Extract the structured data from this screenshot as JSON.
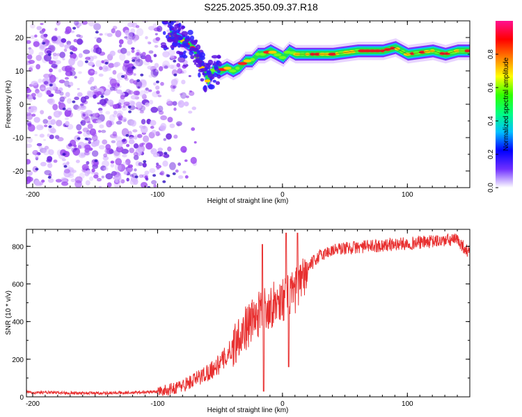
{
  "figure": {
    "title": "S225.2025.350.09.37.R18"
  },
  "colors": {
    "snr_line": "#e83030",
    "spec_noise": "#9b45f0",
    "axis": "#000000",
    "colorbar_stops": [
      "#ffffff",
      "#7030ff",
      "#0000ff",
      "#00c0ff",
      "#00ff80",
      "#30ff00",
      "#ffff00",
      "#ff8000",
      "#ff0000",
      "#ff1090"
    ]
  },
  "chart_data": [
    {
      "type": "heatmap",
      "title": "",
      "xlabel": "Height of straight line (km)",
      "ylabel": "Frequency (Hz)",
      "xlim": [
        -205,
        150
      ],
      "ylim": [
        -25,
        25
      ],
      "xticks": [
        -200,
        -100,
        0,
        100
      ],
      "xtick_labels": [
        "-200",
        "-100",
        "0",
        "100"
      ],
      "yticks": [
        -20,
        -10,
        0,
        10,
        20
      ],
      "ytick_labels": [
        "-20",
        "-10",
        "0",
        "10",
        "20"
      ],
      "colorbar": {
        "label": "Normalized spectral amplitude",
        "range": [
          0,
          1
        ],
        "ticks": [
          0.0,
          0.2,
          0.4,
          0.6,
          0.8
        ],
        "tick_labels": [
          "0.0",
          "0.2",
          "0.4",
          "0.6",
          "0.8"
        ]
      },
      "ridge": {
        "x": [
          -90,
          -80,
          -72,
          -65,
          -60,
          -55,
          -50,
          -45,
          -40,
          -35,
          -30,
          -25,
          -20,
          -15,
          -10,
          -5,
          0,
          5,
          10,
          20,
          40,
          60,
          80,
          90,
          100,
          120,
          130,
          140,
          150
        ],
        "frequency": [
          21,
          19,
          17,
          12,
          7,
          11,
          10,
          11,
          10,
          11,
          13,
          13,
          15,
          15,
          16,
          15,
          14,
          16,
          15,
          15,
          15,
          16,
          16,
          17,
          15,
          16,
          15,
          16,
          16
        ]
      },
      "noise_region_x": [
        -205,
        -80
      ]
    },
    {
      "type": "line",
      "title": "",
      "xlabel": "Height of straight line (km)",
      "ylabel": "SNR (10 * v/v)",
      "xlim": [
        -205,
        150
      ],
      "ylim": [
        0,
        890
      ],
      "xticks": [
        -200,
        -100,
        0,
        100
      ],
      "xtick_labels": [
        "-200",
        "-100",
        "0",
        "100"
      ],
      "yticks": [
        0,
        200,
        400,
        600,
        800
      ],
      "ytick_labels": [
        "0",
        "200",
        "400",
        "600",
        "800"
      ],
      "series": [
        {
          "name": "SNR",
          "x": [
            -205,
            -180,
            -150,
            -120,
            -100,
            -90,
            -80,
            -70,
            -60,
            -50,
            -40,
            -35,
            -30,
            -25,
            -20,
            -15,
            -10,
            -5,
            0,
            5,
            10,
            15,
            20,
            25,
            30,
            40,
            50,
            60,
            70,
            80,
            90,
            100,
            110,
            120,
            130,
            140,
            150
          ],
          "values": [
            25,
            22,
            20,
            22,
            28,
            40,
            60,
            90,
            130,
            175,
            260,
            330,
            360,
            400,
            430,
            470,
            480,
            500,
            520,
            530,
            560,
            600,
            680,
            720,
            750,
            780,
            790,
            795,
            800,
            805,
            810,
            815,
            820,
            825,
            830,
            835,
            760
          ]
        }
      ]
    }
  ]
}
